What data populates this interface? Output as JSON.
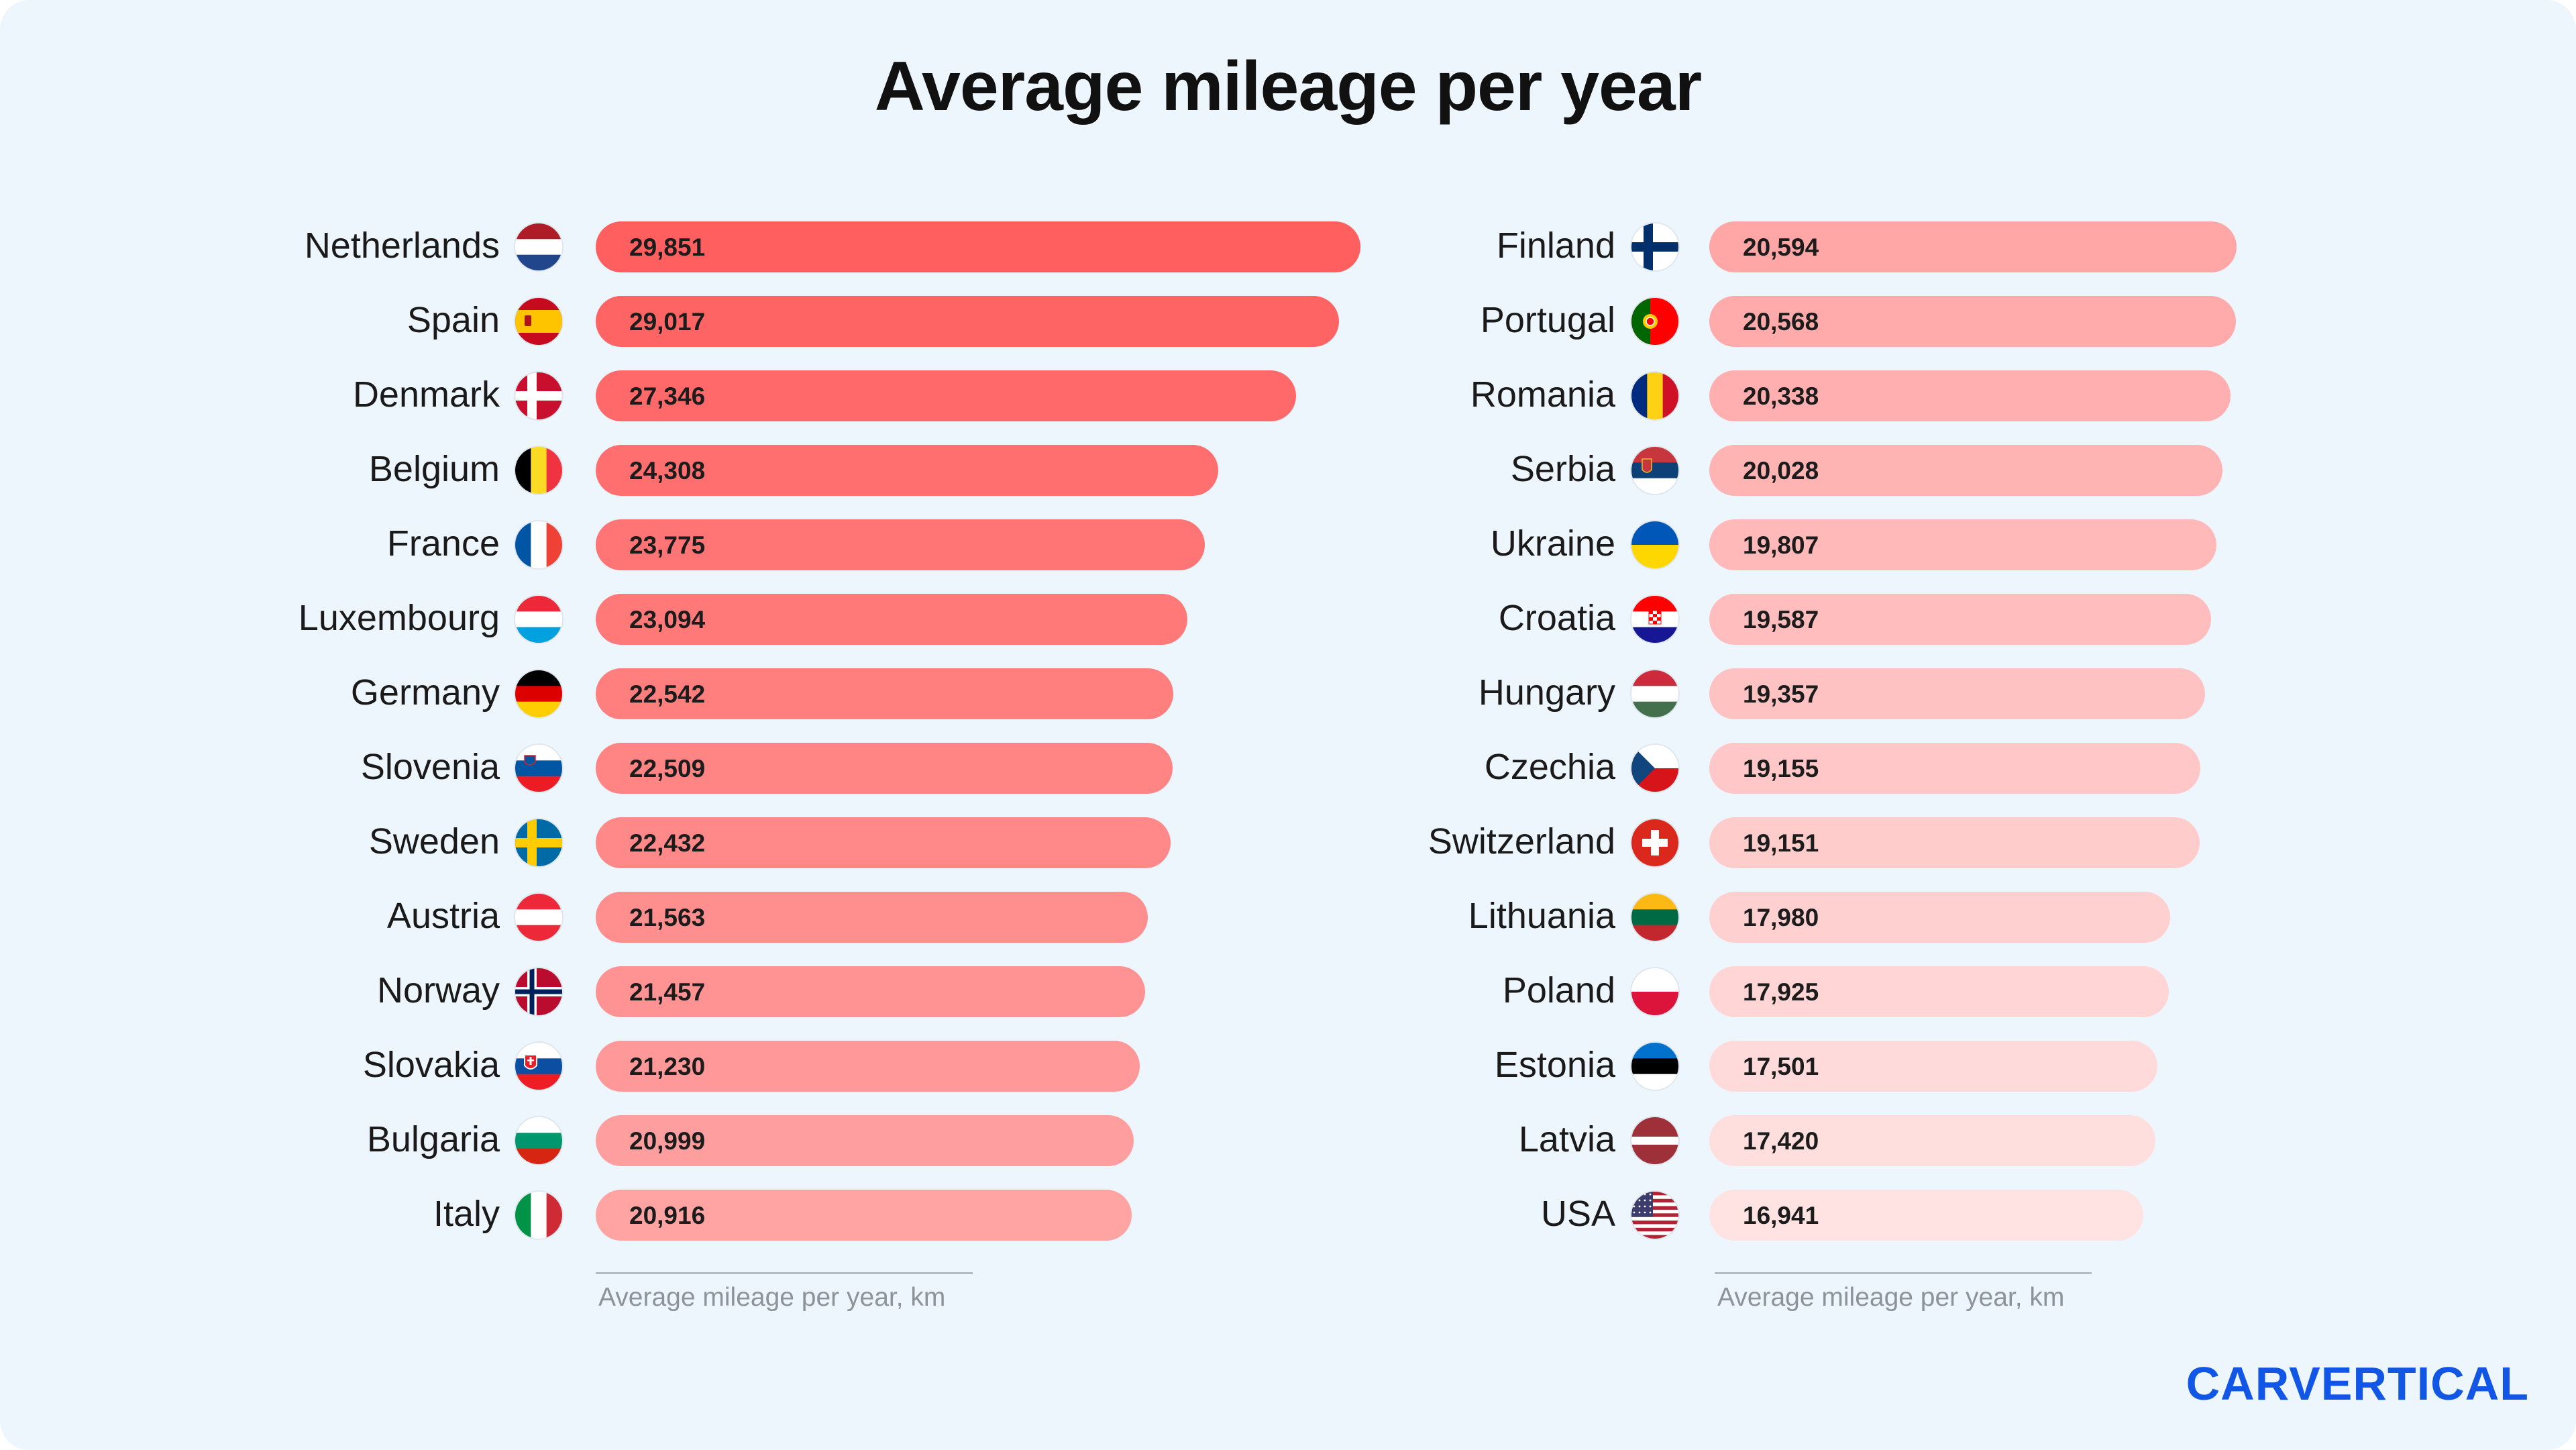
{
  "title": "Average mileage per year",
  "logo": "CARVERTICAL",
  "chart_data": [
    {
      "type": "bar",
      "orientation": "horizontal",
      "xlabel": "Average mileage per year, km",
      "categories": [
        "Netherlands",
        "Spain",
        "Denmark",
        "Belgium",
        "France",
        "Luxembourg",
        "Germany",
        "Slovenia",
        "Sweden",
        "Austria",
        "Norway",
        "Slovakia",
        "Bulgaria",
        "Italy"
      ],
      "values": [
        29851,
        29017,
        27346,
        24308,
        23775,
        23094,
        22542,
        22509,
        22432,
        21563,
        21457,
        21230,
        20999,
        20916
      ],
      "value_labels": [
        "29,851",
        "29,017",
        "27,346",
        "24,308",
        "23,775",
        "23,094",
        "22,542",
        "22,509",
        "22,432",
        "21,563",
        "21,457",
        "21,230",
        "20,999",
        "20,916"
      ],
      "flags": [
        "flag-netherlands-icon",
        "flag-spain-icon",
        "flag-denmark-icon",
        "flag-belgium-icon",
        "flag-france-icon",
        "flag-luxembourg-icon",
        "flag-germany-icon",
        "flag-slovenia-icon",
        "flag-sweden-icon",
        "flag-austria-icon",
        "flag-norway-icon",
        "flag-slovakia-icon",
        "flag-bulgaria-icon",
        "flag-italy-icon"
      ],
      "bar_color_range": [
        "#ff5f5f",
        "#ffa3a3"
      ]
    },
    {
      "type": "bar",
      "orientation": "horizontal",
      "xlabel": "Average mileage per year, km",
      "categories": [
        "Finland",
        "Portugal",
        "Romania",
        "Serbia",
        "Ukraine",
        "Croatia",
        "Hungary",
        "Czechia",
        "Switzerland",
        "Lithuania",
        "Poland",
        "Estonia",
        "Latvia",
        "USA"
      ],
      "values": [
        20594,
        20568,
        20338,
        20028,
        19807,
        19587,
        19357,
        19155,
        19151,
        17980,
        17925,
        17501,
        17420,
        16941
      ],
      "value_labels": [
        "20,594",
        "20,568",
        "20,338",
        "20,028",
        "19,807",
        "19,587",
        "19,357",
        "19,155",
        "19,151",
        "17,980",
        "17,925",
        "17,501",
        "17,420",
        "16,941"
      ],
      "flags": [
        "flag-finland-icon",
        "flag-portugal-icon",
        "flag-romania-icon",
        "flag-serbia-icon",
        "flag-ukraine-icon",
        "flag-croatia-icon",
        "flag-hungary-icon",
        "flag-czechia-icon",
        "flag-switzerland-icon",
        "flag-lithuania-icon",
        "flag-poland-icon",
        "flag-estonia-icon",
        "flag-latvia-icon",
        "flag-usa-icon"
      ],
      "bar_color_range": [
        "#ffa6a6",
        "#ffe3e3"
      ]
    }
  ]
}
